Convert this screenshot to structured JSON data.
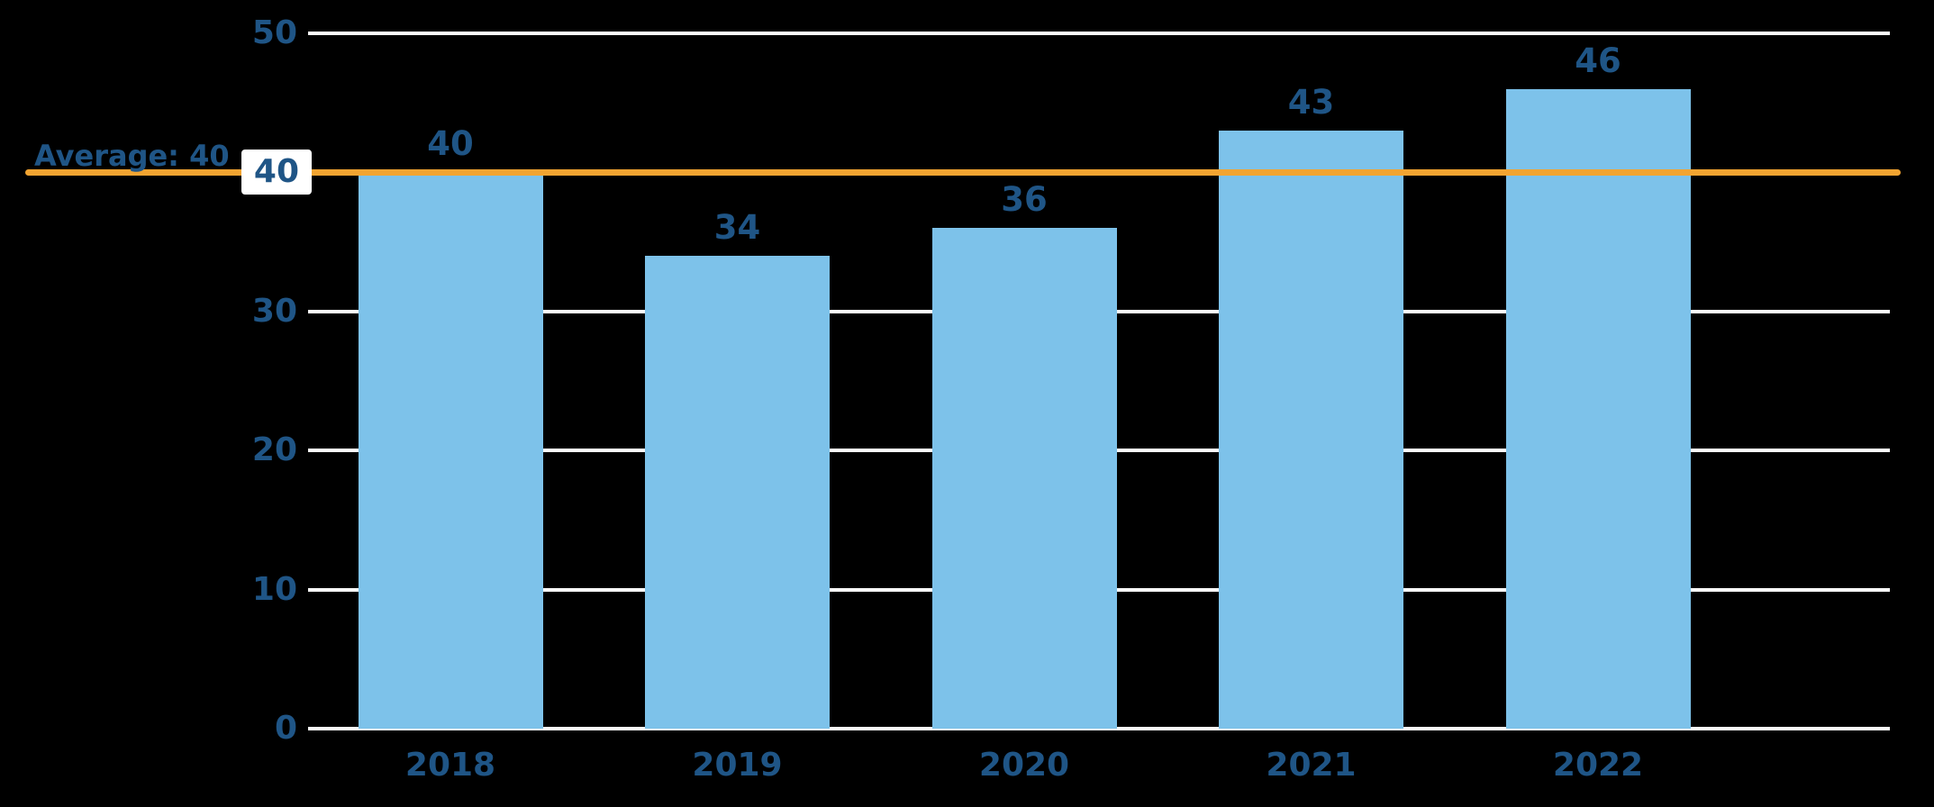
{
  "chart_data": {
    "type": "bar",
    "title": "",
    "xlabel": "",
    "ylabel": "",
    "categories": [
      "2018",
      "2019",
      "2020",
      "2021",
      "2022"
    ],
    "values": [
      40,
      34,
      36,
      43,
      46
    ],
    "value_labels": [
      "40",
      "34",
      "36",
      "43",
      "46"
    ],
    "ylim": [
      0,
      50
    ],
    "yticks": [
      0,
      10,
      20,
      30,
      40,
      50
    ],
    "grid": true,
    "legend": "none",
    "average_line": {
      "value": 40,
      "label": "Average: 40"
    },
    "highlighted_tick": 40
  },
  "colors": {
    "background": "#000000",
    "bar": "#7DC2EA",
    "text": "#1F5586",
    "grid": "#FFFFFF",
    "average_line": "#F2A431",
    "tick_box_background": "#FFFFFF"
  }
}
